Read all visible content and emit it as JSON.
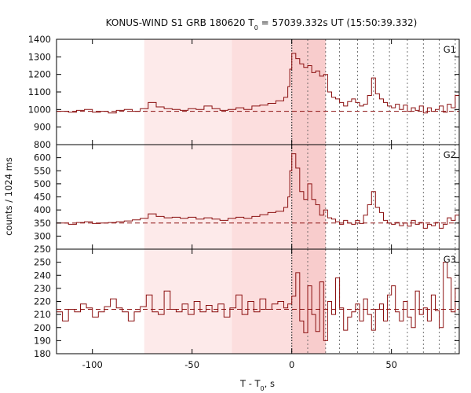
{
  "chart_data": {
    "type": "line",
    "title": "KONUS-WIND S1 GRB 180620 T",
    "title_sub": "0",
    "title_rest": " = 57039.332s UT (15:50:39.332)",
    "ylabel": "counts / 1024 ms",
    "xlabel": "T - T",
    "xlabel_sub": "0",
    "xlabel_rest": ", s",
    "xlim": [
      -118,
      84
    ],
    "xticks": [
      -100,
      -50,
      0,
      50
    ],
    "colors": {
      "line": "#8b1010",
      "shade_light": "#fdeaea",
      "shade_mid": "#fcdede",
      "shade_dark": "#f8cccc",
      "vline": "#333333"
    },
    "shaded_regions": [
      {
        "x0": -74,
        "x1": -30,
        "level": "light"
      },
      {
        "x0": -30,
        "x1": 0,
        "level": "mid"
      },
      {
        "x0": 0,
        "x1": 17,
        "level": "dark"
      }
    ],
    "vertical_lines": [
      {
        "x": 0,
        "style": "dotted-dark"
      },
      {
        "x": 8,
        "style": "dotted"
      },
      {
        "x": 17,
        "style": "dotted"
      },
      {
        "x": 24,
        "style": "dotted"
      },
      {
        "x": 33,
        "style": "dotted"
      },
      {
        "x": 41,
        "style": "dotted"
      },
      {
        "x": 49,
        "style": "dotted"
      },
      {
        "x": 58,
        "style": "dotted"
      },
      {
        "x": 66,
        "style": "dotted"
      },
      {
        "x": 74,
        "style": "dotted"
      },
      {
        "x": 82,
        "style": "dotted"
      }
    ],
    "panels": [
      {
        "label": "G1",
        "ylim": [
          800,
          1400
        ],
        "yticks": [
          800,
          900,
          1000,
          1100,
          1200,
          1300,
          1400
        ],
        "background": 990,
        "series": [
          [
            -118,
            990
          ],
          [
            -112,
            985
          ],
          [
            -108,
            995
          ],
          [
            -104,
            1000
          ],
          [
            -100,
            985
          ],
          [
            -96,
            990
          ],
          [
            -92,
            980
          ],
          [
            -88,
            995
          ],
          [
            -84,
            1000
          ],
          [
            -80,
            990
          ],
          [
            -76,
            1005
          ],
          [
            -72,
            1040
          ],
          [
            -68,
            1015
          ],
          [
            -64,
            1005
          ],
          [
            -60,
            1000
          ],
          [
            -56,
            995
          ],
          [
            -52,
            1005
          ],
          [
            -48,
            1000
          ],
          [
            -44,
            1020
          ],
          [
            -40,
            1005
          ],
          [
            -36,
            995
          ],
          [
            -32,
            1000
          ],
          [
            -28,
            1010
          ],
          [
            -24,
            1000
          ],
          [
            -20,
            1020
          ],
          [
            -16,
            1025
          ],
          [
            -12,
            1035
          ],
          [
            -8,
            1050
          ],
          [
            -4,
            1070
          ],
          [
            -2,
            1130
          ],
          [
            -1,
            1230
          ],
          [
            0,
            1320
          ],
          [
            2,
            1290
          ],
          [
            4,
            1260
          ],
          [
            6,
            1240
          ],
          [
            8,
            1250
          ],
          [
            10,
            1210
          ],
          [
            12,
            1220
          ],
          [
            14,
            1190
          ],
          [
            16,
            1200
          ],
          [
            18,
            1100
          ],
          [
            20,
            1070
          ],
          [
            22,
            1060
          ],
          [
            24,
            1040
          ],
          [
            26,
            1020
          ],
          [
            28,
            1045
          ],
          [
            30,
            1060
          ],
          [
            32,
            1040
          ],
          [
            34,
            1020
          ],
          [
            36,
            1030
          ],
          [
            38,
            1080
          ],
          [
            40,
            1180
          ],
          [
            42,
            1090
          ],
          [
            44,
            1060
          ],
          [
            46,
            1040
          ],
          [
            48,
            1020
          ],
          [
            50,
            1010
          ],
          [
            52,
            1030
          ],
          [
            54,
            1000
          ],
          [
            56,
            1025
          ],
          [
            58,
            990
          ],
          [
            60,
            1010
          ],
          [
            62,
            995
          ],
          [
            64,
            1020
          ],
          [
            66,
            980
          ],
          [
            68,
            1010
          ],
          [
            70,
            990
          ],
          [
            72,
            1000
          ],
          [
            74,
            1020
          ],
          [
            76,
            985
          ],
          [
            78,
            1030
          ],
          [
            80,
            1010
          ],
          [
            82,
            1080
          ],
          [
            84,
            1000
          ]
        ]
      },
      {
        "label": "G2",
        "ylim": [
          250,
          650
        ],
        "yticks": [
          250,
          300,
          350,
          400,
          450,
          500,
          550,
          600
        ],
        "background": 350,
        "series": [
          [
            -118,
            350
          ],
          [
            -112,
            345
          ],
          [
            -108,
            352
          ],
          [
            -104,
            355
          ],
          [
            -100,
            348
          ],
          [
            -96,
            350
          ],
          [
            -92,
            352
          ],
          [
            -88,
            355
          ],
          [
            -84,
            358
          ],
          [
            -80,
            362
          ],
          [
            -76,
            368
          ],
          [
            -72,
            385
          ],
          [
            -68,
            375
          ],
          [
            -64,
            370
          ],
          [
            -60,
            372
          ],
          [
            -56,
            368
          ],
          [
            -52,
            372
          ],
          [
            -48,
            365
          ],
          [
            -44,
            370
          ],
          [
            -40,
            365
          ],
          [
            -36,
            360
          ],
          [
            -32,
            368
          ],
          [
            -28,
            372
          ],
          [
            -24,
            368
          ],
          [
            -20,
            375
          ],
          [
            -16,
            382
          ],
          [
            -12,
            390
          ],
          [
            -8,
            395
          ],
          [
            -4,
            410
          ],
          [
            -2,
            450
          ],
          [
            -1,
            550
          ],
          [
            0,
            615
          ],
          [
            2,
            560
          ],
          [
            4,
            470
          ],
          [
            6,
            440
          ],
          [
            8,
            500
          ],
          [
            10,
            440
          ],
          [
            12,
            420
          ],
          [
            14,
            380
          ],
          [
            16,
            400
          ],
          [
            18,
            370
          ],
          [
            20,
            365
          ],
          [
            22,
            355
          ],
          [
            24,
            345
          ],
          [
            26,
            360
          ],
          [
            28,
            350
          ],
          [
            30,
            345
          ],
          [
            32,
            360
          ],
          [
            34,
            348
          ],
          [
            36,
            380
          ],
          [
            38,
            420
          ],
          [
            40,
            470
          ],
          [
            42,
            410
          ],
          [
            44,
            390
          ],
          [
            46,
            360
          ],
          [
            48,
            350
          ],
          [
            50,
            345
          ],
          [
            52,
            352
          ],
          [
            54,
            340
          ],
          [
            56,
            350
          ],
          [
            58,
            338
          ],
          [
            60,
            360
          ],
          [
            62,
            345
          ],
          [
            64,
            352
          ],
          [
            66,
            330
          ],
          [
            68,
            345
          ],
          [
            70,
            340
          ],
          [
            72,
            352
          ],
          [
            74,
            330
          ],
          [
            76,
            345
          ],
          [
            78,
            370
          ],
          [
            80,
            360
          ],
          [
            82,
            380
          ],
          [
            84,
            348
          ]
        ]
      },
      {
        "label": "G3",
        "ylim": [
          180,
          260
        ],
        "yticks": [
          180,
          190,
          200,
          210,
          220,
          230,
          240,
          250
        ],
        "background": 214,
        "series": [
          [
            -118,
            212
          ],
          [
            -115,
            205
          ],
          [
            -112,
            214
          ],
          [
            -109,
            212
          ],
          [
            -106,
            218
          ],
          [
            -103,
            215
          ],
          [
            -100,
            208
          ],
          [
            -97,
            212
          ],
          [
            -94,
            216
          ],
          [
            -91,
            222
          ],
          [
            -88,
            215
          ],
          [
            -85,
            212
          ],
          [
            -82,
            205
          ],
          [
            -79,
            212
          ],
          [
            -76,
            216
          ],
          [
            -73,
            225
          ],
          [
            -70,
            212
          ],
          [
            -67,
            210
          ],
          [
            -64,
            228
          ],
          [
            -61,
            214
          ],
          [
            -58,
            212
          ],
          [
            -55,
            218
          ],
          [
            -52,
            210
          ],
          [
            -49,
            220
          ],
          [
            -46,
            212
          ],
          [
            -43,
            217
          ],
          [
            -40,
            212
          ],
          [
            -37,
            218
          ],
          [
            -34,
            208
          ],
          [
            -31,
            215
          ],
          [
            -28,
            225
          ],
          [
            -25,
            210
          ],
          [
            -22,
            220
          ],
          [
            -19,
            212
          ],
          [
            -16,
            222
          ],
          [
            -13,
            214
          ],
          [
            -10,
            218
          ],
          [
            -7,
            220
          ],
          [
            -4,
            215
          ],
          [
            -2,
            218
          ],
          [
            0,
            224
          ],
          [
            2,
            242
          ],
          [
            4,
            205
          ],
          [
            6,
            196
          ],
          [
            8,
            232
          ],
          [
            10,
            210
          ],
          [
            12,
            197
          ],
          [
            14,
            235
          ],
          [
            16,
            190
          ],
          [
            18,
            220
          ],
          [
            20,
            210
          ],
          [
            22,
            238
          ],
          [
            24,
            215
          ],
          [
            26,
            198
          ],
          [
            28,
            208
          ],
          [
            30,
            212
          ],
          [
            32,
            218
          ],
          [
            34,
            205
          ],
          [
            36,
            222
          ],
          [
            38,
            210
          ],
          [
            40,
            198
          ],
          [
            42,
            214
          ],
          [
            44,
            218
          ],
          [
            46,
            205
          ],
          [
            48,
            225
          ],
          [
            50,
            232
          ],
          [
            52,
            212
          ],
          [
            54,
            205
          ],
          [
            56,
            220
          ],
          [
            58,
            208
          ],
          [
            60,
            200
          ],
          [
            62,
            228
          ],
          [
            64,
            210
          ],
          [
            66,
            215
          ],
          [
            68,
            205
          ],
          [
            70,
            225
          ],
          [
            72,
            213
          ],
          [
            74,
            200
          ],
          [
            76,
            250
          ],
          [
            78,
            238
          ],
          [
            80,
            212
          ],
          [
            82,
            230
          ],
          [
            84,
            205
          ]
        ]
      }
    ]
  }
}
